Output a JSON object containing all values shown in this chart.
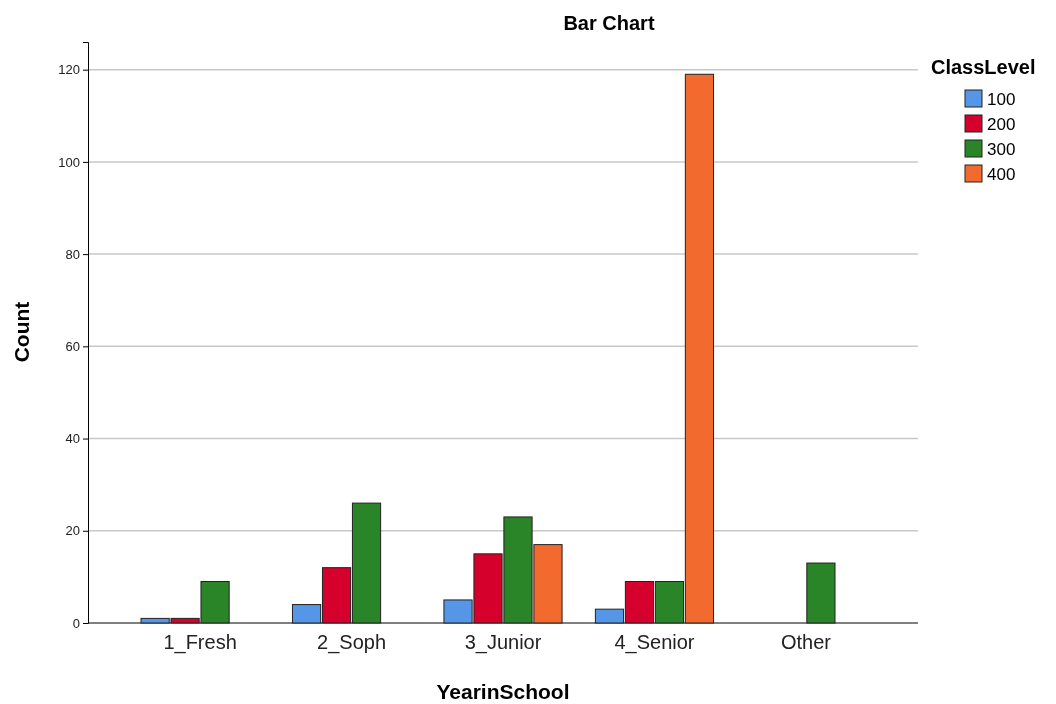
{
  "chart_data": {
    "type": "bar",
    "title": "Bar Chart",
    "xlabel": "YearinSchool",
    "ylabel": "Count",
    "legend_title": "ClassLevel",
    "categories": [
      "1_Fresh",
      "2_Soph",
      "3_Junior",
      "4_Senior",
      "Other"
    ],
    "series": [
      {
        "name": "100",
        "color": "#5596e6",
        "values": [
          1,
          4,
          5,
          3,
          null
        ]
      },
      {
        "name": "200",
        "color": "#d6002d",
        "values": [
          1,
          12,
          15,
          9,
          null
        ]
      },
      {
        "name": "300",
        "color": "#2a8428",
        "values": [
          9,
          26,
          23,
          9,
          13
        ]
      },
      {
        "name": "400",
        "color": "#f26a2e",
        "values": [
          null,
          null,
          17,
          119,
          null
        ]
      }
    ],
    "ylim": [
      0,
      126
    ],
    "yticks": [
      0,
      20,
      40,
      60,
      80,
      100,
      120
    ],
    "grid": "y",
    "legend": "top right"
  }
}
